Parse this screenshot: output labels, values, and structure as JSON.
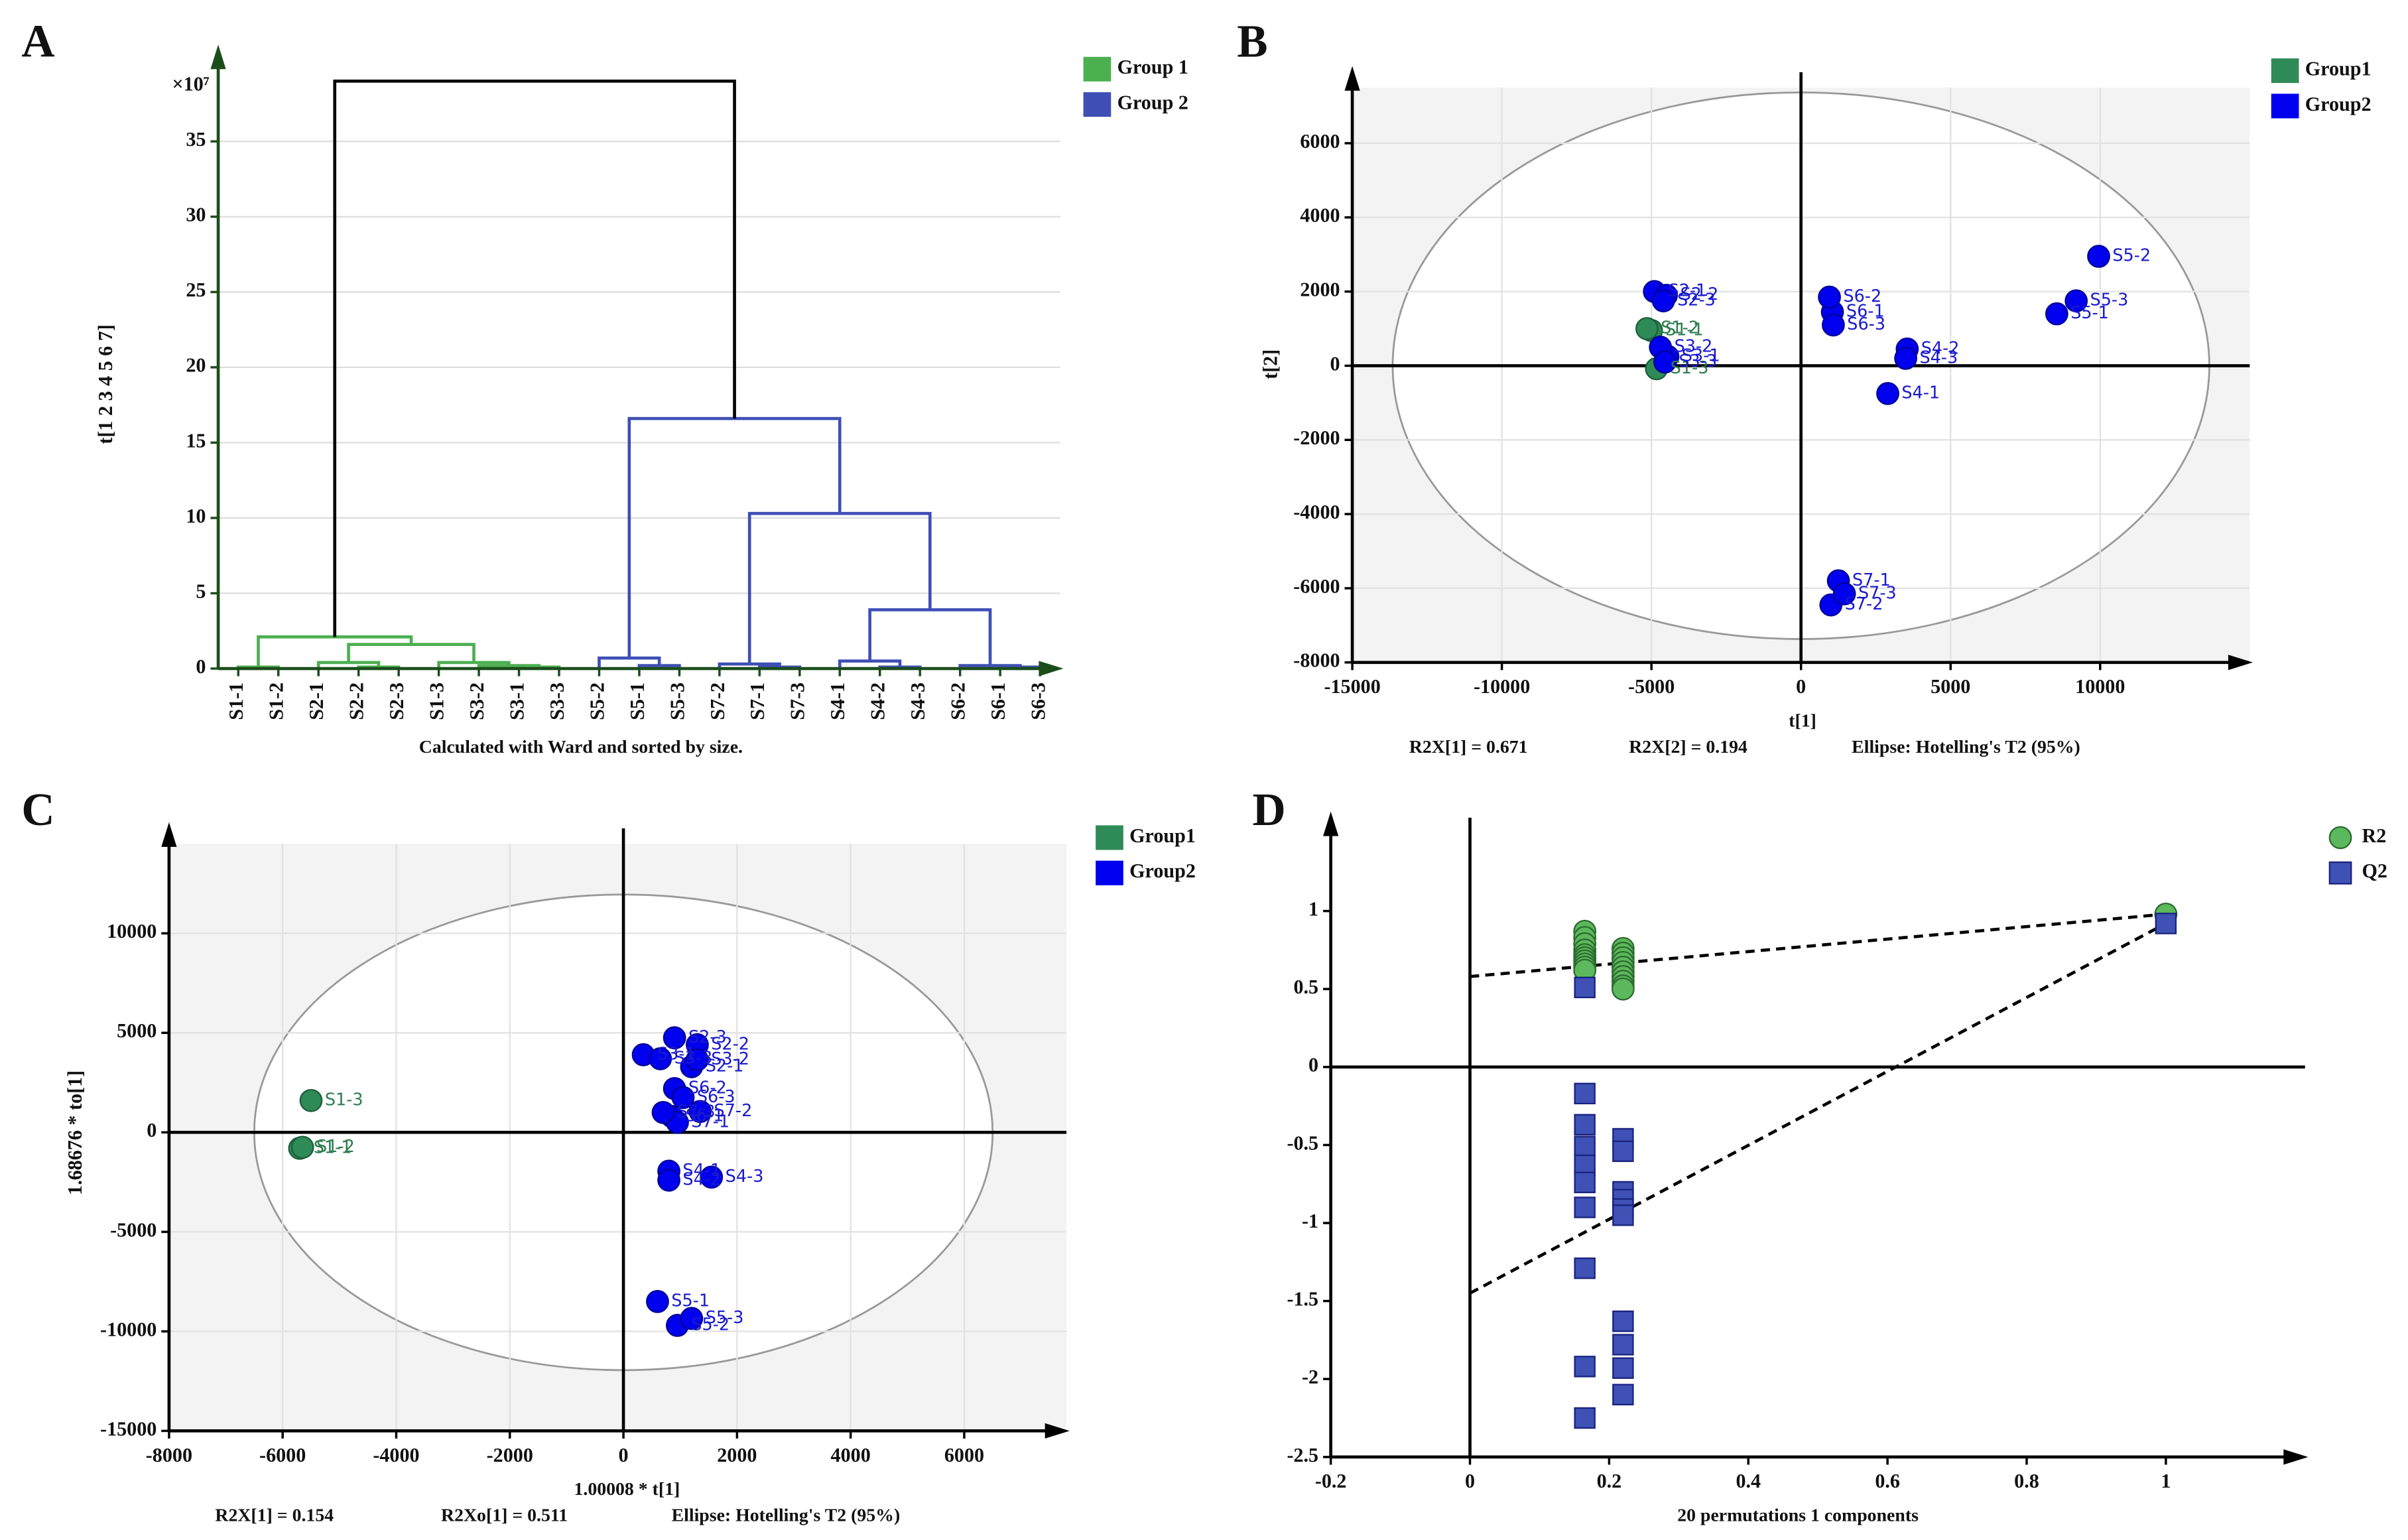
{
  "chart_data": [
    {
      "panel": "A",
      "type": "dendrogram",
      "multiplier": "×10⁷",
      "ylabel": "t[1 2 3 4 5 6 7]",
      "xlabel": "Calculated with Ward and sorted by size.",
      "categories": [
        "S1-1",
        "S1-2",
        "S2-1",
        "S2-2",
        "S2-3",
        "S1-3",
        "S3-2",
        "S3-1",
        "S3-3",
        "S5-2",
        "S5-1",
        "S5-3",
        "S7-2",
        "S7-1",
        "S7-3",
        "S4-1",
        "S4-2",
        "S4-3",
        "S6-2",
        "S6-1",
        "S6-3"
      ],
      "series": [
        {
          "name": "Group 1",
          "color": "#4caf50",
          "members": [
            0,
            1,
            2,
            3,
            4,
            5,
            6,
            7,
            8
          ]
        },
        {
          "name": "Group 2",
          "color": "#3f4fb5",
          "members": [
            9,
            10,
            11,
            12,
            13,
            14,
            15,
            16,
            17,
            18,
            19,
            20
          ]
        }
      ],
      "link_color": "#000000",
      "merges": [
        {
          "children": [
            0,
            1
          ],
          "height": 0.1
        },
        {
          "children": [
            3,
            4
          ],
          "height": 0.1
        },
        {
          "children": [
            2,
            22
          ],
          "height": 0.4
        },
        {
          "children": [
            7,
            8
          ],
          "height": 0.1
        },
        {
          "children": [
            6,
            24
          ],
          "height": 0.2
        },
        {
          "children": [
            5,
            25
          ],
          "height": 0.4
        },
        {
          "children": [
            23,
            26
          ],
          "height": 1.6
        },
        {
          "children": [
            21,
            27
          ],
          "height": 2.1
        },
        {
          "children": [
            10,
            11
          ],
          "height": 0.2
        },
        {
          "children": [
            9,
            29
          ],
          "height": 0.7
        },
        {
          "children": [
            13,
            14
          ],
          "height": 0.1
        },
        {
          "children": [
            12,
            31
          ],
          "height": 0.3
        },
        {
          "children": [
            16,
            17
          ],
          "height": 0.1
        },
        {
          "children": [
            15,
            33
          ],
          "height": 0.5
        },
        {
          "children": [
            19,
            20
          ],
          "height": 0.1
        },
        {
          "children": [
            18,
            35
          ],
          "height": 0.2
        },
        {
          "children": [
            34,
            36
          ],
          "height": 3.9
        },
        {
          "children": [
            32,
            37
          ],
          "height": 10.3
        },
        {
          "children": [
            30,
            38
          ],
          "height": 16.6
        },
        {
          "children": [
            28,
            39
          ],
          "height": 39
        }
      ],
      "ylim": [
        0,
        40
      ],
      "yticks": [
        0,
        5,
        10,
        15,
        20,
        25,
        30,
        35
      ],
      "grid": true
    },
    {
      "panel": "B",
      "type": "scatter",
      "xlabel": "t[1]",
      "ylabel": "t[2]",
      "notes": [
        "R2X[1] = 0.671",
        "R2X[2] = 0.194",
        "Ellipse: Hotelling's T2 (95%)"
      ],
      "series": [
        {
          "name": "Group1",
          "color": "#2e8b57",
          "label_color": "#2e7d4f",
          "labels": [
            "S1-1",
            "S1-2",
            "S1-3"
          ],
          "x": [
            -5000,
            -5150,
            -4830
          ],
          "y": [
            950,
            1000,
            -80
          ]
        },
        {
          "name": "Group2",
          "color": "#0000ee",
          "label_color": "#1a1acd",
          "labels": [
            "S2-1",
            "S2-2",
            "S2-3",
            "S3-1",
            "S3-2",
            "S3-3",
            "S4-1",
            "S4-2",
            "S4-3",
            "S5-1",
            "S5-2",
            "S5-3",
            "S6-1",
            "S6-2",
            "S6-3",
            "S7-1",
            "S7-2",
            "S7-3"
          ],
          "x": [
            -4900,
            -4500,
            -4600,
            -4450,
            -4700,
            -4550,
            2900,
            3550,
            3500,
            8550,
            9950,
            9200,
            1050,
            950,
            1080,
            1250,
            1000,
            1450
          ],
          "y": [
            2000,
            1900,
            1750,
            250,
            500,
            100,
            -750,
            450,
            200,
            1400,
            2950,
            1750,
            1450,
            1850,
            1100,
            -5800,
            -6450,
            -6150
          ]
        }
      ],
      "ellipse": {
        "rx": 13650,
        "ry": 7370
      },
      "xlim": [
        -15000,
        15000
      ],
      "ylim": [
        -8000,
        7500
      ],
      "xticks": [
        -15000,
        -10000,
        -5000,
        0,
        5000,
        10000
      ],
      "yticks": [
        -8000,
        -6000,
        -4000,
        -2000,
        0,
        2000,
        4000,
        6000
      ],
      "grid": true,
      "background": "#f3f3f3"
    },
    {
      "panel": "C",
      "type": "scatter",
      "xlabel": "1.00008 * t[1]",
      "ylabel": "1.68676 * to[1]",
      "notes": [
        "R2X[1] = 0.154",
        "R2Xo[1] = 0.511",
        "Ellipse: Hotelling's T2 (95%)"
      ],
      "series": [
        {
          "name": "Group1",
          "color": "#2e8b57",
          "label_color": "#2e7d4f",
          "labels": [
            "S1-1",
            "S1-2",
            "S1-3"
          ],
          "x": [
            -5700,
            -5650,
            -5500
          ],
          "y": [
            -800,
            -750,
            1600
          ]
        },
        {
          "name": "Group2",
          "color": "#0000ee",
          "label_color": "#1a1acd",
          "labels": [
            "S2-1",
            "S2-2",
            "S2-3",
            "S3-1",
            "S3-2",
            "S3-3",
            "S4-1",
            "S4-2",
            "S4-3",
            "S5-1",
            "S5-2",
            "S5-3",
            "S6-1",
            "S6-2",
            "S6-3",
            "S7-1",
            "S7-2",
            "S7-3"
          ],
          "x": [
            1200,
            1300,
            900,
            350,
            1300,
            650,
            800,
            800,
            1550,
            600,
            950,
            1200,
            850,
            900,
            1050,
            950,
            1350,
            700
          ],
          "y": [
            3300,
            4400,
            4750,
            3900,
            3650,
            3700,
            -1950,
            -2400,
            -2250,
            -8500,
            -9700,
            -9350,
            800,
            2200,
            1750,
            500,
            1050,
            1000
          ]
        }
      ],
      "ellipse": {
        "rx": 6500,
        "ry": 11950
      },
      "xlim": [
        -8000,
        7800
      ],
      "ylim": [
        -15000,
        14500
      ],
      "xticks": [
        -8000,
        -6000,
        -4000,
        -2000,
        0,
        2000,
        4000,
        6000
      ],
      "yticks": [
        -15000,
        -10000,
        -5000,
        0,
        5000,
        10000
      ],
      "grid": true,
      "background": "#f3f3f3"
    },
    {
      "panel": "D",
      "type": "permutation",
      "xlabel": "20 permutations 1 components",
      "series": [
        {
          "name": "R2",
          "color": "#5cb85c",
          "marker": "circle",
          "intercept": 0.58,
          "x": [
            0.165,
            0.165,
            0.165,
            0.165,
            0.165,
            0.165,
            0.165,
            0.165,
            0.165,
            0.165,
            0.22,
            0.22,
            0.22,
            0.22,
            0.22,
            0.22,
            0.22,
            0.22,
            0.22,
            0.22,
            1
          ],
          "y": [
            0.87,
            0.83,
            0.79,
            0.75,
            0.72,
            0.7,
            0.68,
            0.66,
            0.64,
            0.62,
            0.76,
            0.73,
            0.7,
            0.67,
            0.64,
            0.61,
            0.58,
            0.55,
            0.52,
            0.5,
            0.98
          ]
        },
        {
          "name": "Q2",
          "color": "#3f51b5",
          "marker": "square",
          "intercept": -1.45,
          "x": [
            0.165,
            0.165,
            0.165,
            0.165,
            0.165,
            0.165,
            0.165,
            0.165,
            0.165,
            0.165,
            0.22,
            0.22,
            0.22,
            0.22,
            0.22,
            0.22,
            0.22,
            0.22,
            0.22,
            0.22,
            1
          ],
          "y": [
            0.51,
            -0.17,
            -0.37,
            -0.51,
            -0.63,
            -0.74,
            -0.9,
            -1.29,
            -1.92,
            -2.25,
            -0.46,
            -0.54,
            -0.8,
            -0.85,
            -0.91,
            -0.95,
            -1.63,
            -1.78,
            -1.93,
            -2.1,
            0.92
          ]
        }
      ],
      "xlim": [
        -0.2,
        1.2
      ],
      "ylim": [
        -2.5,
        1.5
      ],
      "xticks": [
        -0.2,
        0,
        0.2,
        0.4,
        0.6,
        0.8,
        1
      ],
      "yticks": [
        -2.5,
        -2,
        -1.5,
        -1,
        -0.5,
        0,
        0.5,
        1
      ]
    }
  ]
}
